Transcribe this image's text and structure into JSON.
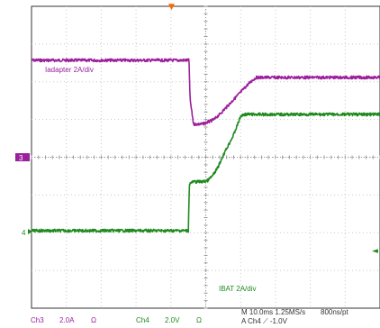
{
  "chart_data": {
    "type": "line",
    "title": "",
    "xlabel": "",
    "ylabel": "",
    "x_unit": "ms",
    "xlim": [
      0,
      100
    ],
    "grid": true,
    "colors": {
      "ch3": "#9c1f9c",
      "ch4": "#1f8a1f",
      "trigger": "#ff6600",
      "grid": "#c8c8c8"
    },
    "series": [
      {
        "name": "Iadapter 2A/div",
        "channel_marker": "3",
        "color": "#9c1f9c",
        "ylim": [
          -7.5,
          4.8
        ],
        "x": [
          0,
          45.2,
          45.5,
          46.5,
          49,
          51,
          52.5,
          54,
          56,
          58,
          60,
          62,
          63.5,
          64.5,
          100
        ],
        "y": [
          2.6,
          2.6,
          1.0,
          0,
          0,
          0.1,
          0.2,
          0.4,
          0.7,
          1.0,
          1.3,
          1.6,
          1.8,
          1.9,
          1.9
        ]
      },
      {
        "name": "IBAT 2A/div",
        "channel_marker": "4",
        "color": "#1f8a1f",
        "ylim": [
          -6.2,
          8.6
        ],
        "x": [
          0,
          45,
          45.3,
          46.5,
          49,
          50.5,
          52,
          53.5,
          55,
          58,
          60,
          61,
          100
        ],
        "y": [
          -2.4,
          -2.4,
          -0.1,
          0,
          0,
          0.05,
          0.3,
          0.7,
          1.3,
          2.3,
          3.2,
          3.3,
          3.3
        ]
      }
    ]
  },
  "markers": {
    "trigger_position": "▼",
    "trigger_level": "◄"
  },
  "footer": {
    "ch3_label": "Ch3",
    "ch3_scale": "2.0A",
    "ch3_ohm": "Ω",
    "ch4_label": "Ch4",
    "ch4_scale": "2.0V",
    "ch4_ohm": "Ω",
    "timebase": "M 10.0ms 1.25MS/s",
    "record": "800ns/pt",
    "trigger": "A  Ch4  ⟋  -1.0V"
  }
}
